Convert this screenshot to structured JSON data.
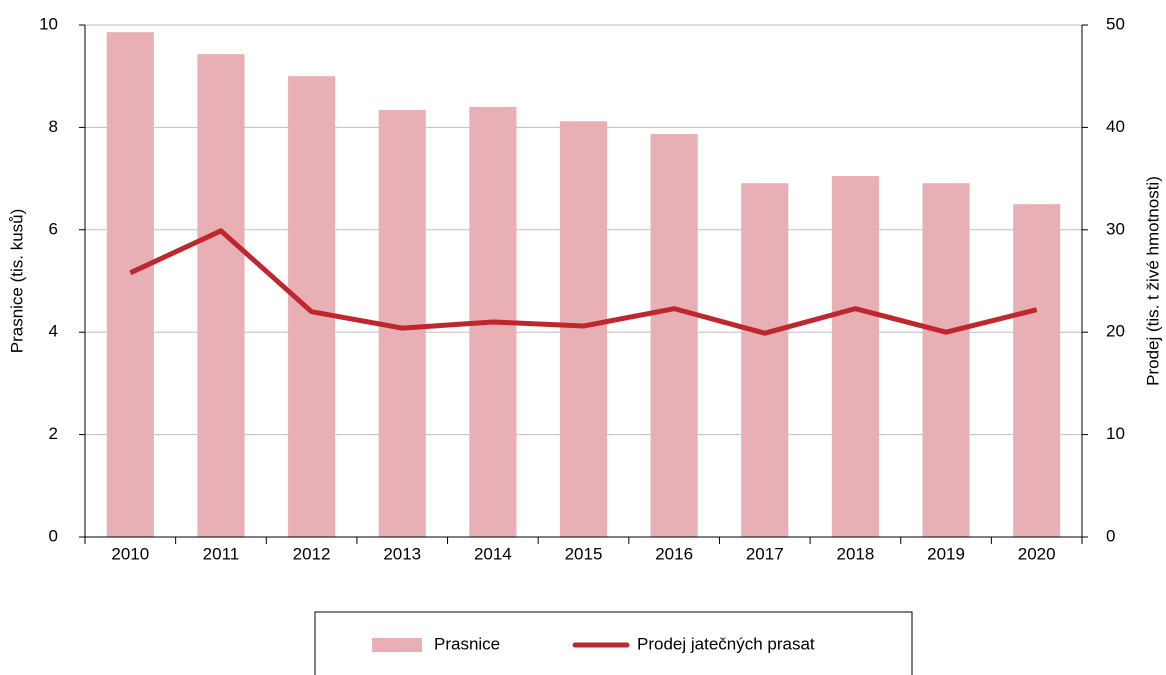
{
  "chart_data": {
    "type": "bar",
    "categories": [
      "2010",
      "2011",
      "2012",
      "2013",
      "2014",
      "2015",
      "2016",
      "2017",
      "2018",
      "2019",
      "2020"
    ],
    "series": [
      {
        "name": "Prasnice",
        "type": "bar",
        "color": "#e8b0b4",
        "axis": "y",
        "values": [
          9.86,
          9.43,
          9.0,
          8.34,
          8.4,
          8.12,
          7.87,
          6.91,
          7.05,
          6.91,
          6.5
        ]
      },
      {
        "name": "Prodej jatečných prasat",
        "type": "line",
        "color": "#c0272d",
        "axis": "y2",
        "values": [
          25.8,
          29.9,
          22.0,
          20.4,
          21.0,
          20.6,
          22.3,
          19.9,
          22.3,
          20.0,
          22.2
        ]
      }
    ],
    "ylabel": "Prasnice (tis. kusů)",
    "y2label": "Prodej (tis. t živé hmotnosti)",
    "ylim": [
      0,
      10
    ],
    "yticks": [
      0,
      2,
      4,
      6,
      8,
      10
    ],
    "y2lim": [
      0,
      50
    ],
    "y2ticks": [
      0,
      10,
      20,
      30,
      40,
      50
    ],
    "grid": true,
    "legend": "bottom"
  }
}
